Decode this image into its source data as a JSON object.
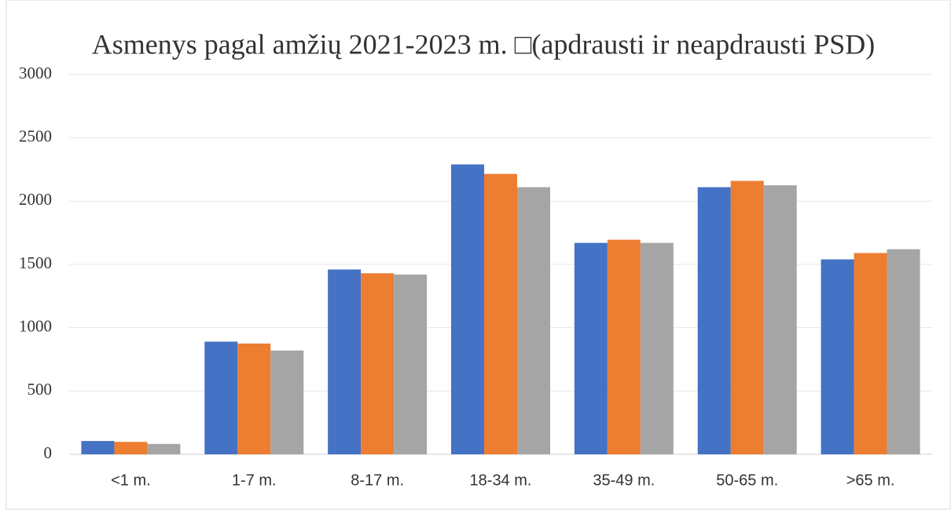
{
  "chart_data": {
    "type": "bar",
    "title": "Asmenys pagal amžių 2021-2023 m. □(apdrausti ir neapdrausti PSD)",
    "categories": [
      "<1 m.",
      "1-7 m.",
      "8-17 m.",
      "18-34 m.",
      "35-49 m.",
      "50-65 m.",
      ">65 m."
    ],
    "series": [
      {
        "color": "#4472c4",
        "values": [
          105,
          890,
          1460,
          2290,
          1670,
          2110,
          1540
        ]
      },
      {
        "color": "#ed7d31",
        "values": [
          98,
          875,
          1430,
          2215,
          1695,
          2160,
          1590
        ]
      },
      {
        "color": "#a5a5a5",
        "values": [
          82,
          820,
          1420,
          2110,
          1670,
          2125,
          1620
        ]
      }
    ],
    "ylim": [
      0,
      3000
    ],
    "yticks": [
      0,
      500,
      1000,
      1500,
      2000,
      2500,
      3000
    ],
    "grid": true
  }
}
